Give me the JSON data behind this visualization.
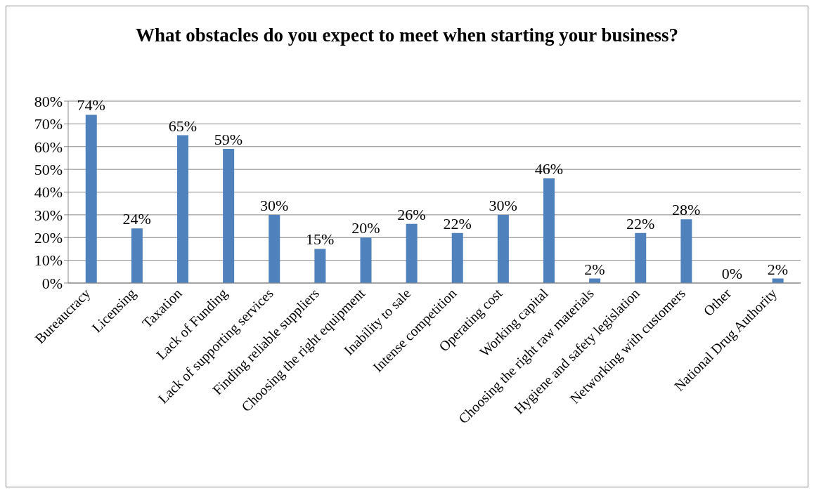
{
  "chart_data": {
    "type": "bar",
    "title": "What obstacles do you expect to meet when starting your business?",
    "categories": [
      "Bureaucracy",
      "Licensing",
      "Taxation",
      "Lack of Funding",
      "Lack of supporting services",
      "Finding reliable suppliers",
      "Choosing the right equipment",
      "Inability to sale",
      "Intense competition",
      "Operating cost",
      "Working capital",
      "Choosing the right raw materials",
      "Hygiene and safety legislation",
      "Networking with customers",
      "Other",
      "National Drug Authority"
    ],
    "values": [
      74,
      24,
      65,
      59,
      30,
      15,
      20,
      26,
      22,
      30,
      46,
      2,
      22,
      28,
      0,
      2
    ],
    "value_labels": [
      "74%",
      "24%",
      "65%",
      "59%",
      "30%",
      "15%",
      "20%",
      "26%",
      "22%",
      "30%",
      "46%",
      "2%",
      "22%",
      "28%",
      "0%",
      "2%"
    ],
    "color": "#4f81bd",
    "ylim": [
      0,
      80
    ],
    "yticks": [
      {
        "value": 0,
        "label": "0%"
      },
      {
        "value": 10,
        "label": "10%"
      },
      {
        "value": 20,
        "label": "20%"
      },
      {
        "value": 30,
        "label": "30%"
      },
      {
        "value": 40,
        "label": "40%"
      },
      {
        "value": 50,
        "label": "50%"
      },
      {
        "value": 60,
        "label": "60%"
      },
      {
        "value": 70,
        "label": "70%"
      },
      {
        "value": 80,
        "label": "80%"
      }
    ],
    "grid": "y",
    "legend": false
  }
}
